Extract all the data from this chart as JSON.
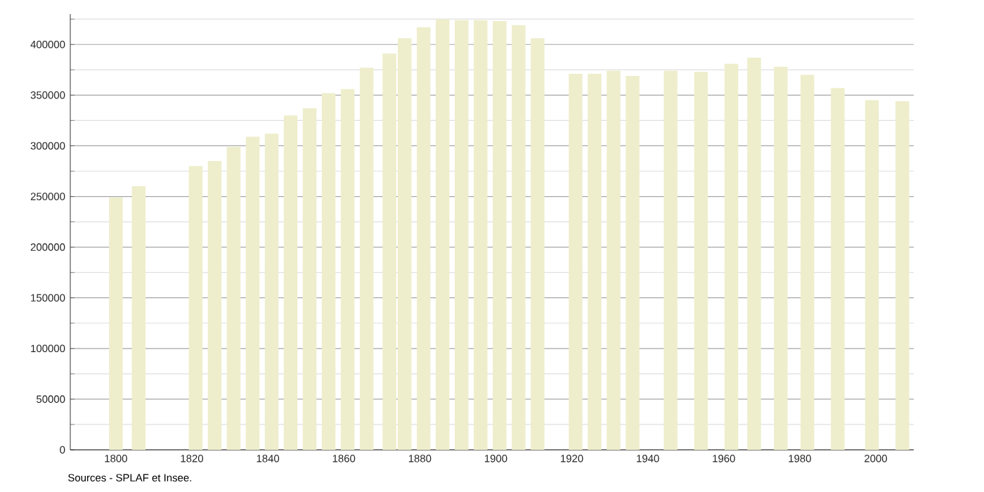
{
  "chart_data": {
    "type": "bar",
    "x": [
      1800,
      1806,
      1821,
      1826,
      1831,
      1836,
      1841,
      1846,
      1851,
      1856,
      1861,
      1866,
      1872,
      1876,
      1881,
      1886,
      1891,
      1896,
      1901,
      1906,
      1911,
      1921,
      1926,
      1931,
      1936,
      1946,
      1954,
      1962,
      1968,
      1975,
      1982,
      1990,
      1999,
      2007
    ],
    "values": [
      249000,
      260000,
      280000,
      285000,
      299000,
      309000,
      312000,
      330000,
      337000,
      352000,
      356000,
      377000,
      391000,
      406000,
      417000,
      425000,
      424000,
      424000,
      423000,
      419000,
      406000,
      371000,
      371000,
      374000,
      369000,
      374000,
      373000,
      381000,
      387000,
      378000,
      370000,
      357000,
      345000,
      344000
    ],
    "color": "#eeeecc",
    "xlim": [
      1788,
      2010
    ],
    "xticks": [
      1800,
      1820,
      1840,
      1860,
      1880,
      1900,
      1920,
      1940,
      1960,
      1980,
      2000
    ],
    "ylim": [
      0,
      430000
    ],
    "yticks": [
      0,
      {
        "value": 25000,
        "label": null
      },
      50000,
      {
        "value": 75000,
        "label": null
      },
      100000,
      {
        "value": 125000,
        "label": null
      },
      150000,
      {
        "value": 175000,
        "label": null
      },
      200000,
      {
        "value": 225000,
        "label": null
      },
      250000,
      {
        "value": 275000,
        "label": null
      },
      300000,
      {
        "value": 325000,
        "label": null
      },
      350000,
      {
        "value": 375000,
        "label": null
      },
      400000,
      {
        "value": 425000,
        "label": null
      }
    ],
    "grid": "y",
    "annotations": [
      "Sources - SPLAF et Insee."
    ]
  }
}
